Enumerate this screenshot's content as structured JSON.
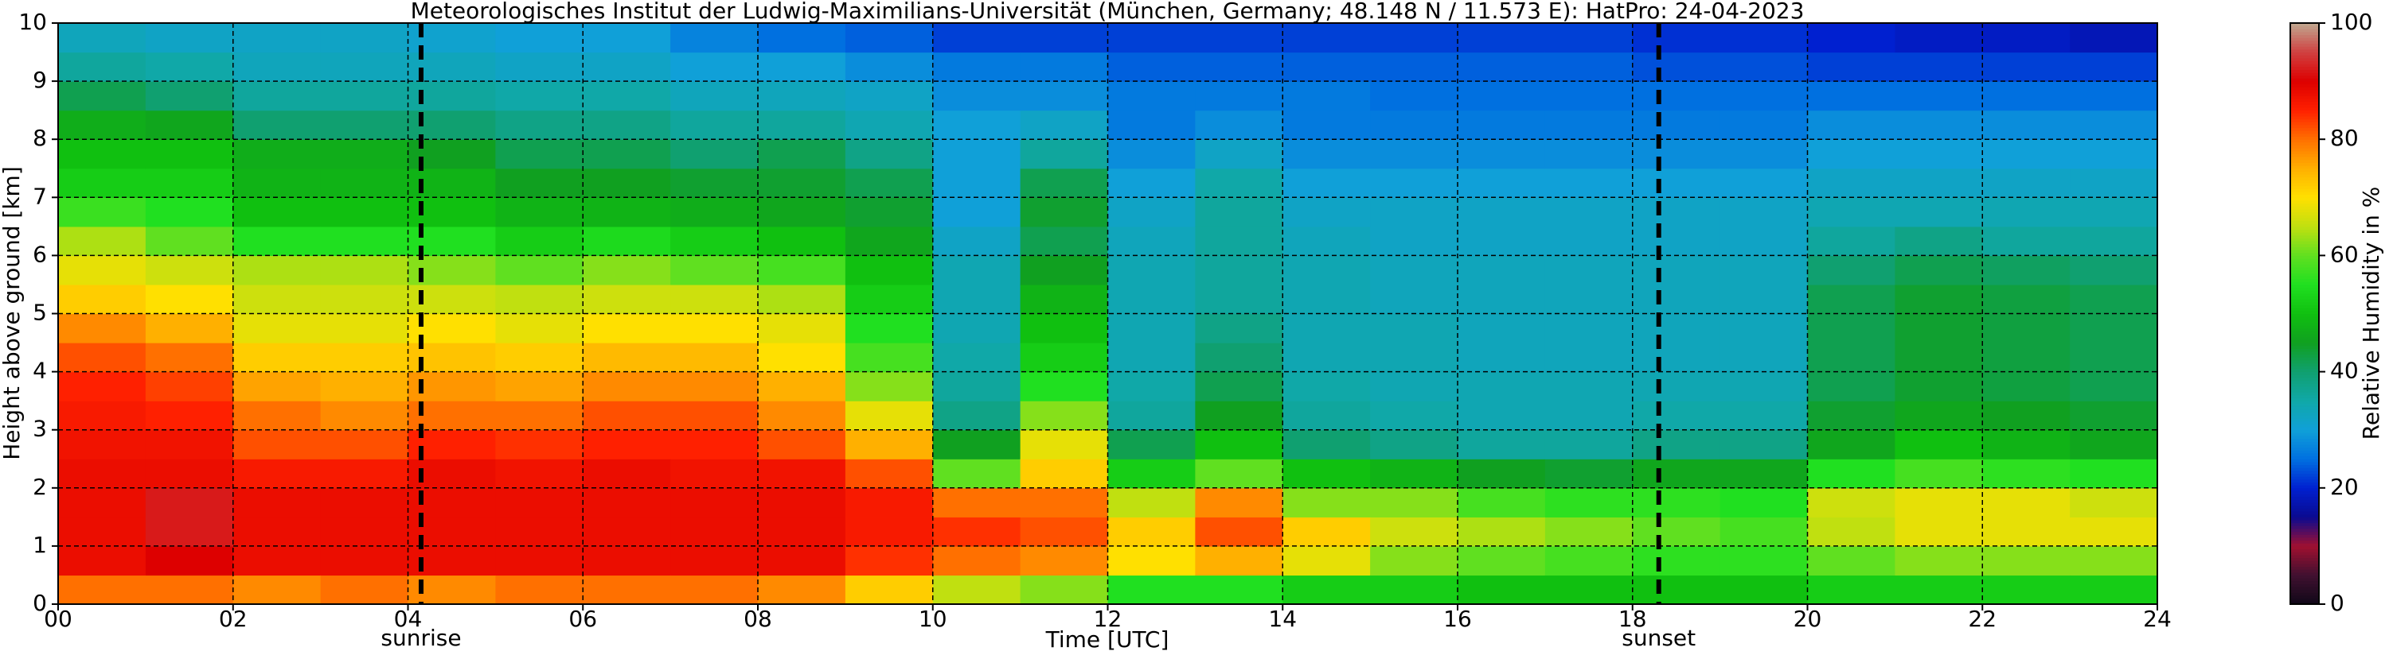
{
  "chart_data": {
    "type": "heatmap",
    "title": "Meteorologisches Institut der Ludwig-Maximilians-Universität (München, Germany; 48.148 N / 11.573 E):    HatPro: 24-04-2023",
    "x_label": "Time [UTC]",
    "y_label": "Height above ground [km]",
    "x": [
      0,
      1,
      2,
      3,
      4,
      5,
      6,
      7,
      8,
      9,
      10,
      11,
      12,
      13,
      14,
      15,
      16,
      17,
      18,
      19,
      20,
      21,
      22,
      23
    ],
    "y": [
      0,
      0.5,
      1,
      1.5,
      2,
      2.5,
      3,
      3.5,
      4,
      4.5,
      5,
      5.5,
      6,
      6.5,
      7,
      7.5,
      8,
      8.5,
      9,
      9.5
    ],
    "z": [
      [
        80,
        88,
        88,
        88,
        88,
        87,
        86,
        85,
        82,
        78,
        72,
        68,
        64,
        57,
        52,
        50,
        47,
        42,
        36,
        33
      ],
      [
        80,
        90,
        92,
        92,
        88,
        87,
        85,
        83,
        80,
        75,
        70,
        66,
        60,
        55,
        52,
        50,
        46,
        40,
        35,
        32
      ],
      [
        78,
        88,
        88,
        88,
        86,
        82,
        80,
        76,
        72,
        68,
        66,
        64,
        55,
        50,
        48,
        47,
        40,
        36,
        33,
        32
      ],
      [
        80,
        88,
        88,
        88,
        86,
        82,
        78,
        75,
        72,
        68,
        66,
        64,
        55,
        50,
        48,
        47,
        40,
        36,
        33,
        32
      ],
      [
        78,
        88,
        88,
        88,
        88,
        85,
        80,
        77,
        73,
        70,
        66,
        62,
        55,
        50,
        48,
        45,
        40,
        36,
        33,
        31
      ],
      [
        80,
        88,
        88,
        88,
        87,
        84,
        80,
        76,
        72,
        68,
        65,
        60,
        52,
        48,
        45,
        42,
        38,
        35,
        32,
        30
      ],
      [
        80,
        88,
        88,
        88,
        88,
        85,
        82,
        78,
        74,
        70,
        66,
        62,
        54,
        48,
        45,
        42,
        38,
        35,
        32,
        30
      ],
      [
        80,
        88,
        88,
        88,
        87,
        85,
        82,
        78,
        74,
        70,
        66,
        60,
        52,
        47,
        44,
        40,
        36,
        33,
        30,
        27
      ],
      [
        78,
        88,
        88,
        88,
        87,
        82,
        78,
        75,
        70,
        68,
        64,
        58,
        50,
        46,
        44,
        42,
        36,
        33,
        30,
        25
      ],
      [
        72,
        84,
        86,
        86,
        82,
        75,
        68,
        62,
        58,
        55,
        52,
        50,
        46,
        44,
        42,
        38,
        34,
        32,
        28,
        24
      ],
      [
        65,
        80,
        84,
        80,
        60,
        45,
        38,
        36,
        35,
        34,
        34,
        34,
        32,
        30,
        30,
        30,
        30,
        28,
        26,
        22
      ],
      [
        62,
        78,
        82,
        80,
        72,
        68,
        62,
        55,
        52,
        50,
        48,
        45,
        42,
        44,
        42,
        36,
        32,
        28,
        26,
        22
      ],
      [
        55,
        70,
        72,
        65,
        52,
        42,
        36,
        35,
        34,
        34,
        34,
        34,
        33,
        32,
        30,
        28,
        26,
        26,
        24,
        22
      ],
      [
        55,
        75,
        82,
        78,
        60,
        50,
        45,
        42,
        40,
        38,
        36,
        36,
        36,
        36,
        35,
        32,
        28,
        26,
        24,
        22
      ],
      [
        52,
        68,
        72,
        62,
        50,
        40,
        36,
        35,
        34,
        34,
        34,
        34,
        33,
        32,
        30,
        28,
        26,
        26,
        24,
        22
      ],
      [
        52,
        62,
        66,
        62,
        48,
        38,
        35,
        34,
        34,
        34,
        33,
        33,
        32,
        32,
        30,
        28,
        26,
        25,
        24,
        22
      ],
      [
        50,
        60,
        64,
        58,
        45,
        36,
        34,
        34,
        33,
        33,
        33,
        33,
        32,
        32,
        30,
        28,
        26,
        25,
        24,
        22
      ],
      [
        50,
        58,
        62,
        56,
        44,
        36,
        34,
        34,
        33,
        33,
        33,
        33,
        32,
        32,
        30,
        28,
        26,
        25,
        24,
        22
      ],
      [
        50,
        56,
        60,
        56,
        46,
        38,
        35,
        34,
        33,
        33,
        33,
        33,
        32,
        32,
        30,
        28,
        26,
        25,
        23,
        21
      ],
      [
        50,
        56,
        58,
        55,
        46,
        38,
        35,
        34,
        33,
        33,
        33,
        33,
        32,
        32,
        30,
        28,
        26,
        25,
        23,
        21
      ],
      [
        52,
        60,
        65,
        66,
        55,
        46,
        44,
        42,
        42,
        42,
        42,
        40,
        36,
        34,
        32,
        30,
        28,
        25,
        22,
        20
      ],
      [
        52,
        62,
        68,
        68,
        58,
        50,
        46,
        44,
        44,
        44,
        44,
        42,
        38,
        34,
        32,
        30,
        28,
        25,
        22,
        19
      ],
      [
        52,
        62,
        68,
        68,
        56,
        48,
        45,
        43,
        43,
        43,
        43,
        41,
        36,
        34,
        32,
        30,
        28,
        25,
        22,
        19
      ],
      [
        52,
        62,
        68,
        66,
        55,
        46,
        44,
        42,
        42,
        42,
        42,
        40,
        36,
        34,
        32,
        30,
        28,
        25,
        22,
        18
      ]
    ],
    "xlim": [
      0,
      24
    ],
    "ylim": [
      0,
      10
    ],
    "xticks": [
      {
        "value": 0,
        "label": "00"
      },
      {
        "value": 2,
        "label": "02"
      },
      {
        "value": 4,
        "label": "04"
      },
      {
        "value": 6,
        "label": "06"
      },
      {
        "value": 8,
        "label": "08"
      },
      {
        "value": 10,
        "label": "10"
      },
      {
        "value": 12,
        "label": "12"
      },
      {
        "value": 14,
        "label": "14"
      },
      {
        "value": 16,
        "label": "16"
      },
      {
        "value": 18,
        "label": "18"
      },
      {
        "value": 20,
        "label": "20"
      },
      {
        "value": 22,
        "label": "22"
      },
      {
        "value": 24,
        "label": "24"
      }
    ],
    "yticks": [
      0,
      1,
      2,
      3,
      4,
      5,
      6,
      7,
      8,
      9,
      10
    ],
    "grid": true,
    "annotations": [
      {
        "text": "sunrise",
        "x": 4.15
      },
      {
        "text": "sunset",
        "x": 18.3
      }
    ],
    "colorbar": {
      "label": "Relative Humidity in %",
      "lim": [
        0,
        100
      ],
      "ticks": [
        0,
        20,
        40,
        60,
        80,
        100
      ]
    },
    "colormap": [
      "#100818",
      "#401030",
      "#a01030",
      "#0a0a90",
      "#0020d0",
      "#0070e0",
      "#10a0d8",
      "#10a8a8",
      "#10a070",
      "#10a020",
      "#10c010",
      "#20e020",
      "#60e020",
      "#c0e010",
      "#ffe000",
      "#ffb000",
      "#ff7000",
      "#ff2000",
      "#dd0000",
      "#d04040",
      "#c0a890"
    ]
  }
}
